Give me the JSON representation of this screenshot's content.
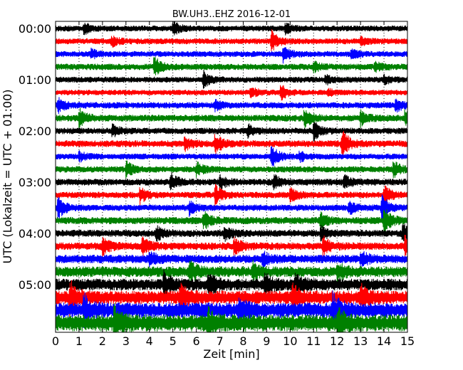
{
  "chart_data": {
    "type": "line",
    "title": "BW.UH3..EHZ 2016-12-01",
    "xlabel": "Zeit  [min]",
    "ylabel": "UTC (Lokalzeit = UTC + 01:00)",
    "xlim": [
      0,
      15
    ],
    "x_ticks": [
      "0",
      "1",
      "2",
      "3",
      "4",
      "5",
      "6",
      "7",
      "8",
      "9",
      "10",
      "11",
      "12",
      "13",
      "14",
      "15"
    ],
    "y_ticks": [
      "00:00",
      "01:00",
      "02:00",
      "03:00",
      "04:00",
      "05:00"
    ],
    "trace_interval_min": 15,
    "trace_count": 24,
    "colors": [
      "#000000",
      "#ff0000",
      "#0000ff",
      "#008000"
    ],
    "vertical_grid": "dotted",
    "traces": [
      {
        "start": "00:00",
        "color": "#000000",
        "amplitude": 0.14,
        "events": [
          {
            "t": 1.2,
            "a": 0.25
          },
          {
            "t": 5.0,
            "a": 0.3
          },
          {
            "t": 9.8,
            "a": 0.2
          }
        ]
      },
      {
        "start": "00:15",
        "color": "#ff0000",
        "amplitude": 0.14,
        "events": [
          {
            "t": 2.4,
            "a": 0.2
          },
          {
            "t": 9.2,
            "a": 0.45
          },
          {
            "t": 13.0,
            "a": 0.2
          }
        ]
      },
      {
        "start": "00:30",
        "color": "#0000ff",
        "amplitude": 0.14,
        "events": [
          {
            "t": 1.5,
            "a": 0.2
          },
          {
            "t": 9.7,
            "a": 0.35
          },
          {
            "t": 12.6,
            "a": 0.2
          }
        ]
      },
      {
        "start": "00:45",
        "color": "#008000",
        "amplitude": 0.15,
        "events": [
          {
            "t": 4.2,
            "a": 0.45
          },
          {
            "t": 11.0,
            "a": 0.2
          },
          {
            "t": 13.6,
            "a": 0.2
          }
        ]
      },
      {
        "start": "01:00",
        "color": "#000000",
        "amplitude": 0.14,
        "events": [
          {
            "t": 6.3,
            "a": 0.35
          },
          {
            "t": 11.5,
            "a": 0.2
          },
          {
            "t": 14.0,
            "a": 0.2
          }
        ]
      },
      {
        "start": "01:15",
        "color": "#ff0000",
        "amplitude": 0.13,
        "events": [
          {
            "t": 8.3,
            "a": 0.25
          },
          {
            "t": 9.6,
            "a": 0.35
          },
          {
            "t": 11.6,
            "a": 0.15
          }
        ]
      },
      {
        "start": "01:30",
        "color": "#0000ff",
        "amplitude": 0.15,
        "events": [
          {
            "t": 0.1,
            "a": 0.3
          },
          {
            "t": 6.8,
            "a": 0.2
          },
          {
            "t": 14.5,
            "a": 0.3
          }
        ]
      },
      {
        "start": "01:45",
        "color": "#008000",
        "amplitude": 0.16,
        "events": [
          {
            "t": 1.0,
            "a": 0.4
          },
          {
            "t": 10.6,
            "a": 0.45
          },
          {
            "t": 13.0,
            "a": 0.3
          },
          {
            "t": 14.9,
            "a": 0.4
          }
        ]
      },
      {
        "start": "02:00",
        "color": "#000000",
        "amplitude": 0.15,
        "events": [
          {
            "t": 2.4,
            "a": 0.25
          },
          {
            "t": 8.2,
            "a": 0.25
          },
          {
            "t": 11.0,
            "a": 0.4
          }
        ]
      },
      {
        "start": "02:15",
        "color": "#ff0000",
        "amplitude": 0.16,
        "events": [
          {
            "t": 5.5,
            "a": 0.3
          },
          {
            "t": 6.8,
            "a": 0.45
          },
          {
            "t": 12.2,
            "a": 0.7
          }
        ]
      },
      {
        "start": "02:30",
        "color": "#0000ff",
        "amplitude": 0.14,
        "events": [
          {
            "t": 1.0,
            "a": 0.2
          },
          {
            "t": 9.2,
            "a": 0.5
          },
          {
            "t": 10.4,
            "a": 0.2
          }
        ]
      },
      {
        "start": "02:45",
        "color": "#008000",
        "amplitude": 0.15,
        "events": [
          {
            "t": 3.0,
            "a": 0.35
          },
          {
            "t": 6.0,
            "a": 0.3
          },
          {
            "t": 14.4,
            "a": 0.35
          }
        ]
      },
      {
        "start": "03:00",
        "color": "#000000",
        "amplitude": 0.16,
        "events": [
          {
            "t": 4.9,
            "a": 0.4
          },
          {
            "t": 7.0,
            "a": 0.3
          },
          {
            "t": 9.3,
            "a": 0.3
          },
          {
            "t": 12.3,
            "a": 0.3
          }
        ]
      },
      {
        "start": "03:15",
        "color": "#ff0000",
        "amplitude": 0.15,
        "events": [
          {
            "t": 3.6,
            "a": 0.35
          },
          {
            "t": 6.8,
            "a": 0.45
          },
          {
            "t": 10.0,
            "a": 0.35
          },
          {
            "t": 14.0,
            "a": 0.45
          }
        ]
      },
      {
        "start": "03:30",
        "color": "#0000ff",
        "amplitude": 0.15,
        "events": [
          {
            "t": 0.1,
            "a": 0.5
          },
          {
            "t": 5.7,
            "a": 0.3
          },
          {
            "t": 12.5,
            "a": 0.3
          },
          {
            "t": 13.9,
            "a": 0.6
          }
        ]
      },
      {
        "start": "03:45",
        "color": "#008000",
        "amplitude": 0.17,
        "events": [
          {
            "t": 6.3,
            "a": 0.4
          },
          {
            "t": 11.3,
            "a": 0.3
          },
          {
            "t": 14.0,
            "a": 0.6
          }
        ]
      },
      {
        "start": "04:00",
        "color": "#000000",
        "amplitude": 0.17,
        "events": [
          {
            "t": 4.3,
            "a": 0.3
          },
          {
            "t": 7.2,
            "a": 0.3
          },
          {
            "t": 11.3,
            "a": 0.3
          },
          {
            "t": 14.8,
            "a": 0.45
          }
        ]
      },
      {
        "start": "04:15",
        "color": "#ff0000",
        "amplitude": 0.18,
        "events": [
          {
            "t": 2.0,
            "a": 0.4
          },
          {
            "t": 3.7,
            "a": 0.4
          },
          {
            "t": 7.6,
            "a": 0.35
          },
          {
            "t": 11.4,
            "a": 0.4
          },
          {
            "t": 14.9,
            "a": 0.55
          }
        ]
      },
      {
        "start": "04:30",
        "color": "#0000ff",
        "amplitude": 0.2,
        "events": [
          {
            "t": 4.0,
            "a": 0.3
          },
          {
            "t": 8.8,
            "a": 0.3
          },
          {
            "t": 13.0,
            "a": 0.35
          }
        ]
      },
      {
        "start": "04:45",
        "color": "#008000",
        "amplitude": 0.25,
        "events": [
          {
            "t": 5.7,
            "a": 0.45
          },
          {
            "t": 8.4,
            "a": 0.35
          },
          {
            "t": 12.0,
            "a": 0.4
          }
        ]
      },
      {
        "start": "05:00",
        "color": "#000000",
        "amplitude": 0.28,
        "events": [
          {
            "t": 4.6,
            "a": 0.5
          },
          {
            "t": 6.5,
            "a": 0.5
          },
          {
            "t": 8.9,
            "a": 0.5
          },
          {
            "t": 10.2,
            "a": 0.5
          }
        ]
      },
      {
        "start": "05:15",
        "color": "#ff0000",
        "amplitude": 0.32,
        "events": [
          {
            "t": 0.6,
            "a": 0.7
          },
          {
            "t": 5.3,
            "a": 0.6
          },
          {
            "t": 10.1,
            "a": 0.5
          },
          {
            "t": 13.0,
            "a": 0.5
          }
        ]
      },
      {
        "start": "05:30",
        "color": "#0000ff",
        "amplitude": 0.36,
        "events": [
          {
            "t": 1.2,
            "a": 0.6
          },
          {
            "t": 7.8,
            "a": 0.5
          },
          {
            "t": 11.8,
            "a": 0.7
          }
        ]
      },
      {
        "start": "05:45",
        "color": "#008000",
        "amplitude": 0.4,
        "events": [
          {
            "t": 2.5,
            "a": 0.7
          },
          {
            "t": 6.5,
            "a": 0.5
          },
          {
            "t": 12.0,
            "a": 0.6
          }
        ]
      }
    ]
  }
}
